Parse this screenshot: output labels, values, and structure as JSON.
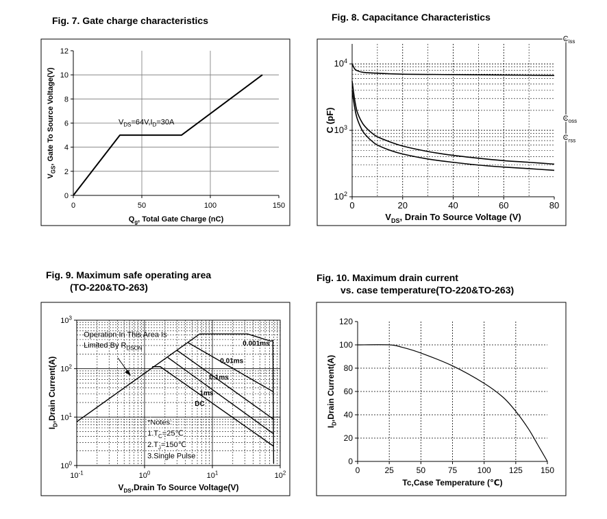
{
  "chart_data": [
    {
      "id": "fig7",
      "type": "line",
      "title": "Fig. 7. Gate charge characteristics",
      "xlabel": "Qg, Total Gate Charge (nC)",
      "ylabel": "VGS, Gate To Source Voltage(V)",
      "xlim": [
        0,
        150
      ],
      "ylim": [
        0,
        12
      ],
      "xticks": [
        0,
        50,
        100,
        150
      ],
      "yticks": [
        0,
        2,
        4,
        6,
        8,
        10,
        12
      ],
      "grid": true,
      "series": [
        {
          "name": "VGS",
          "x": [
            0,
            34,
            79,
            138
          ],
          "y": [
            0,
            5,
            5,
            10
          ]
        }
      ],
      "annotations": [
        {
          "text": "VDS=64V,ID=30A",
          "x": 33,
          "y": 5.9
        }
      ]
    },
    {
      "id": "fig8",
      "type": "line",
      "title": "Fig. 8. Capacitance Characteristics",
      "xlabel": "VDS, Drain To Source Voltage (V)",
      "ylabel": "C (pF)",
      "xlim": [
        0,
        80
      ],
      "ylim": [
        100,
        20000
      ],
      "yscale": "log",
      "xticks": [
        0,
        20,
        40,
        60,
        80
      ],
      "yticks": [
        100,
        1000,
        10000
      ],
      "ytick_labels": [
        "10^2",
        "10^3",
        "10^4"
      ],
      "grid": true,
      "series": [
        {
          "name": "Ciss",
          "x": [
            0,
            1,
            2,
            4,
            8,
            20,
            40,
            60,
            80
          ],
          "y": [
            10000,
            8400,
            7900,
            7500,
            7300,
            7000,
            6900,
            6800,
            6700
          ]
        },
        {
          "name": "Coss",
          "x": [
            0,
            1,
            2,
            4,
            6,
            8,
            10,
            15,
            20,
            30,
            40,
            50,
            60,
            70,
            80
          ],
          "y": [
            5500,
            2900,
            1900,
            1300,
            1050,
            900,
            800,
            670,
            580,
            480,
            420,
            380,
            350,
            330,
            310
          ]
        },
        {
          "name": "Crss",
          "x": [
            0,
            1,
            2,
            4,
            6,
            8,
            10,
            15,
            20,
            30,
            40,
            50,
            60,
            70,
            80
          ],
          "y": [
            4000,
            2200,
            1500,
            1000,
            800,
            680,
            600,
            500,
            440,
            370,
            330,
            300,
            280,
            265,
            250
          ]
        }
      ],
      "annotations": [
        {
          "text": "Ciss",
          "x": 49,
          "y": 6900
        },
        {
          "text": "Coss",
          "x": 49,
          "y": 370
        },
        {
          "text": "Crss",
          "x": 49,
          "y": 270
        }
      ]
    },
    {
      "id": "fig9",
      "type": "line",
      "title": "Fig. 9. Maximum safe operating area\n         (TO-220&TO-263)",
      "xlabel": "VDS,Drain To Source Voltage(V)",
      "ylabel": "ID,Drain Current(A)",
      "xlim": [
        0.1,
        100
      ],
      "ylim": [
        1,
        1000
      ],
      "xscale": "log",
      "yscale": "log",
      "xticks": [
        0.1,
        1,
        10,
        100
      ],
      "xtick_labels": [
        "10^-1",
        "10^0",
        "10^1",
        "10^2"
      ],
      "yticks": [
        1,
        10,
        100,
        1000
      ],
      "ytick_labels": [
        "10^0",
        "10^1",
        "10^2",
        "10^3"
      ],
      "grid": true,
      "series": [
        {
          "name": "RDS(on) limit",
          "x": [
            0.1,
            6.5
          ],
          "y": [
            8,
            520
          ]
        },
        {
          "name": "0.001ms",
          "x": [
            6.5,
            33,
            72,
            78,
            80
          ],
          "y": [
            520,
            520,
            370,
            380,
            1.1
          ]
        },
        {
          "name": "0.01ms",
          "x": [
            4.3,
            80
          ],
          "y": [
            350,
            33
          ]
        },
        {
          "name": "0.1ms",
          "x": [
            3.0,
            80
          ],
          "y": [
            240,
            9
          ]
        },
        {
          "name": "1ms",
          "x": [
            2.2,
            80
          ],
          "y": [
            170,
            4.5
          ]
        },
        {
          "name": "DC",
          "x": [
            1.3,
            1.7,
            80
          ],
          "y": [
            110,
            110,
            2.5
          ]
        }
      ],
      "annotations": [
        {
          "text": "Operation In This Area Is",
          "x": 0.11,
          "y": 450
        },
        {
          "text": "Limited By RDSON",
          "x": 0.11,
          "y": 270
        },
        {
          "text": "0.001ms",
          "x": 28,
          "y": 300
        },
        {
          "text": "0.01ms",
          "x": 13,
          "y": 130
        },
        {
          "text": "0.1ms",
          "x": 9,
          "y": 60
        },
        {
          "text": "1ms",
          "x": 6.5,
          "y": 28
        },
        {
          "text": "DC",
          "x": 5.5,
          "y": 17
        },
        {
          "text": "*Notes:",
          "x": 1.1,
          "y": 7
        },
        {
          "text": "1.TC=25℃",
          "x": 1.1,
          "y": 4.1
        },
        {
          "text": "2.TJ=150℃",
          "x": 1.1,
          "y": 2.4
        },
        {
          "text": "3.Single Pulse",
          "x": 1.1,
          "y": 1.4
        }
      ]
    },
    {
      "id": "fig10",
      "type": "line",
      "title": "Fig. 10. Maximum drain current\n         vs. case temperature(TO-220&TO-263)",
      "xlabel": "Tc,Case Temperature (℃)",
      "ylabel": "ID,Drain Current(A)",
      "xlim": [
        0,
        150
      ],
      "ylim": [
        0,
        120
      ],
      "xticks": [
        0,
        25,
        50,
        75,
        100,
        125,
        150
      ],
      "yticks": [
        0,
        20,
        40,
        60,
        80,
        100,
        120
      ],
      "grid": true,
      "series": [
        {
          "name": "ID",
          "x": [
            0,
            25,
            35,
            50,
            75,
            100,
            115,
            125,
            135,
            142,
            150
          ],
          "y": [
            100,
            100,
            98,
            93,
            82,
            67,
            55,
            43,
            28,
            15,
            0
          ]
        }
      ]
    }
  ]
}
